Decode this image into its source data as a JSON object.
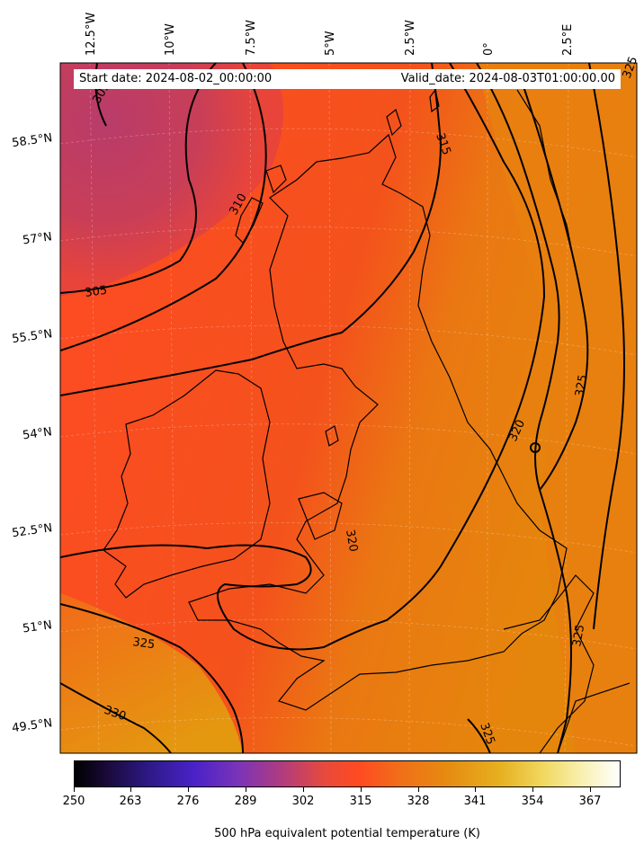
{
  "header": {
    "start_date": "Start date: 2024-08-02_00:00:00",
    "valid_date": "Valid_date: 2024-08-03T01:00:00.00"
  },
  "axes": {
    "lon_labels": [
      "12.5°W",
      "10°W",
      "7.5°W",
      "5°W",
      "2.5°W",
      "0°",
      "2.5°E"
    ],
    "lat_labels": [
      "58.5°N",
      "57°N",
      "55.5°N",
      "54°N",
      "52.5°N",
      "51°N",
      "49.5°N"
    ]
  },
  "contours": {
    "labels": [
      "305",
      "305",
      "310",
      "315",
      "320",
      "320",
      "325",
      "325",
      "325",
      "325",
      "330",
      "325"
    ]
  },
  "colorbar": {
    "ticks": [
      "250",
      "263",
      "276",
      "289",
      "302",
      "315",
      "328",
      "341",
      "354",
      "367"
    ],
    "label": "500 hPa equivalent potential temperature (K)"
  },
  "colors": {
    "cold": "#c03a5c",
    "mid": "#ff4422",
    "warm": "#e67e0a",
    "hot": "#e8a014"
  }
}
